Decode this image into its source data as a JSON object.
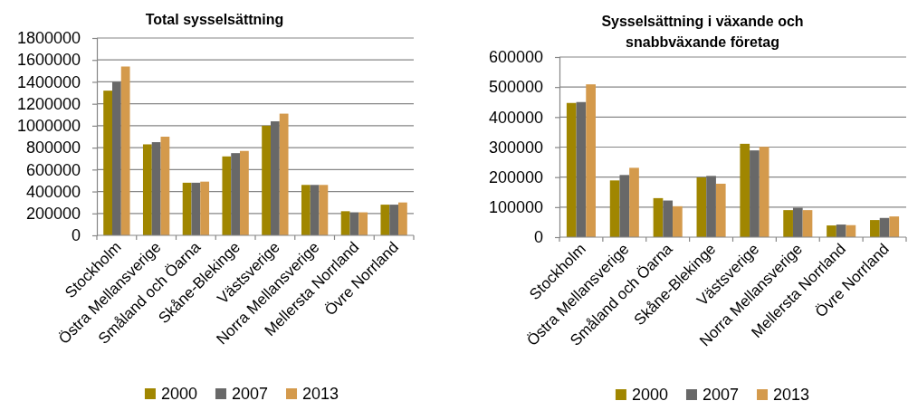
{
  "chart_data": [
    {
      "type": "bar",
      "title": "Total sysselsättning",
      "categories": [
        "Stockholm",
        "Östra Mellansverige",
        "Småland och Öarna",
        "Skåne-Blekinge",
        "Västsverige",
        "Norra Mellansverige",
        "Mellersta Norrland",
        "Övre Norrland"
      ],
      "series": [
        {
          "name": "2000",
          "color": "#a08600",
          "values": [
            1320000,
            830000,
            480000,
            720000,
            1000000,
            460000,
            220000,
            280000
          ]
        },
        {
          "name": "2007",
          "color": "#686868",
          "values": [
            1400000,
            850000,
            480000,
            750000,
            1040000,
            460000,
            210000,
            280000
          ]
        },
        {
          "name": "2013",
          "color": "#d49a4c",
          "values": [
            1540000,
            900000,
            490000,
            770000,
            1110000,
            460000,
            210000,
            300000
          ]
        }
      ],
      "ylim": [
        0,
        1800000
      ],
      "yticks": [
        0,
        200000,
        400000,
        600000,
        800000,
        1000000,
        1200000,
        1400000,
        1600000,
        1800000
      ],
      "grid": "y",
      "legend": "bottom"
    },
    {
      "type": "bar",
      "title": "Sysselsättning i växande och snabbväxande företag",
      "categories": [
        "Stockholm",
        "Östra Mellansverige",
        "Småland och Öarna",
        "Skåne-Blekinge",
        "Västsverige",
        "Norra Mellansverige",
        "Mellersta Norrland",
        "Övre Norrland"
      ],
      "series": [
        {
          "name": "2000",
          "color": "#a08600",
          "values": [
            447000,
            189000,
            130000,
            199000,
            311000,
            90000,
            39000,
            57000
          ]
        },
        {
          "name": "2007",
          "color": "#686868",
          "values": [
            450000,
            207000,
            122000,
            204000,
            289000,
            98000,
            42000,
            64000
          ]
        },
        {
          "name": "2013",
          "color": "#d49a4c",
          "values": [
            509000,
            231000,
            103000,
            178000,
            301000,
            90000,
            40000,
            69000
          ]
        }
      ],
      "ylim": [
        0,
        600000
      ],
      "yticks": [
        0,
        100000,
        200000,
        300000,
        400000,
        500000,
        600000
      ],
      "grid": "y",
      "legend": "bottom"
    }
  ]
}
